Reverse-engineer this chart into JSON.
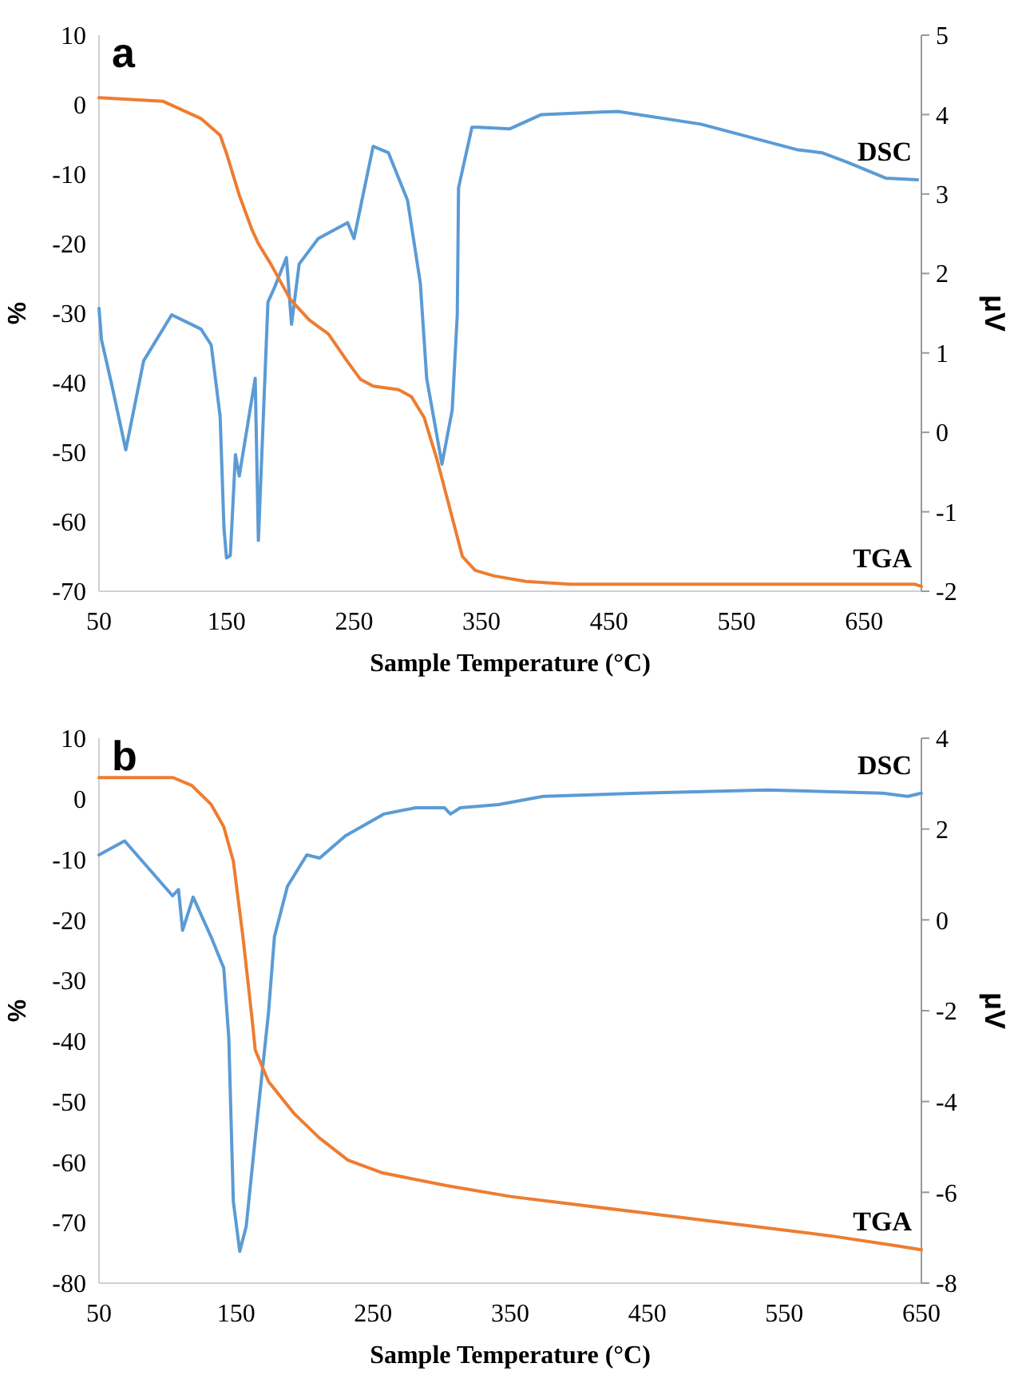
{
  "chart_data": [
    {
      "type": "line",
      "annotations": [
        "a"
      ],
      "xlabel": "Sample Temperature (°C)",
      "ylabel": "%",
      "y2label": "μV",
      "xlim": [
        50,
        695
      ],
      "xticks": [
        50,
        150,
        250,
        350,
        450,
        550,
        650
      ],
      "ylim": [
        -70,
        10
      ],
      "yticks": [
        -70,
        -60,
        -50,
        -40,
        -30,
        -20,
        -10,
        0,
        10
      ],
      "y2lim": [
        -2,
        5
      ],
      "y2ticks": [
        -2,
        -1,
        0,
        1,
        2,
        3,
        4,
        5
      ],
      "grid": false,
      "marker": "none",
      "line_style": "solid",
      "series": [
        {
          "name": "DSC",
          "color": "#5b9bd5",
          "axis": "y2",
          "x": [
            50,
            52,
            60,
            71,
            85,
            107,
            130,
            138,
            145,
            148,
            150,
            153,
            157,
            160,
            172.5,
            175,
            182.5,
            187,
            197,
            201,
            207,
            222,
            245,
            250,
            265,
            277,
            292,
            302,
            307,
            319,
            327,
            331,
            332,
            342.5,
            347,
            372,
            397,
            457,
            522,
            597,
            617,
            637,
            667,
            692
          ],
          "values": [
            1.56,
            1.16,
            0.6,
            -0.22,
            0.9,
            1.48,
            1.3,
            1.1,
            0.2,
            -1.2,
            -1.58,
            -1.55,
            -0.28,
            -0.55,
            0.68,
            -1.36,
            1.64,
            1.8,
            2.2,
            1.36,
            2.12,
            2.44,
            2.64,
            2.44,
            3.6,
            3.52,
            2.92,
            1.88,
            0.68,
            -0.4,
            0.28,
            1.48,
            3.08,
            3.84,
            3.84,
            3.82,
            4.0,
            4.04,
            3.88,
            3.56,
            3.52,
            3.4,
            3.2,
            3.18
          ]
        },
        {
          "name": "TGA",
          "color": "#ed7d31",
          "x": [
            50,
            100,
            130,
            145,
            150,
            160,
            170,
            175,
            185,
            200,
            215,
            230,
            245,
            255,
            265,
            285,
            295,
            305,
            315,
            325,
            335,
            345,
            360,
            385,
            420,
            690,
            695
          ],
          "values": [
            1,
            0.5,
            -2,
            -4.4,
            -7,
            -13,
            -18,
            -20,
            -23,
            -28,
            -31,
            -33,
            -37,
            -39.5,
            -40.5,
            -41,
            -42,
            -45,
            -51,
            -58,
            -65,
            -67,
            -67.8,
            -68.6,
            -69,
            -69,
            -69.3
          ]
        }
      ]
    },
    {
      "type": "line",
      "annotations": [
        "b"
      ],
      "xlabel": "Sample Temperature (°C)",
      "ylabel": "%",
      "y2label": "μV",
      "xlim": [
        50,
        650
      ],
      "xticks": [
        50,
        150,
        250,
        350,
        450,
        550,
        650
      ],
      "ylim": [
        -80,
        10
      ],
      "yticks": [
        -80,
        -70,
        -60,
        -50,
        -40,
        -30,
        -20,
        -10,
        0,
        10
      ],
      "y2lim": [
        -8,
        4
      ],
      "y2ticks": [
        -8,
        -6,
        -4,
        -2,
        0,
        2,
        4
      ],
      "grid": false,
      "marker": "none",
      "line_style": "solid",
      "series": [
        {
          "name": "DSC",
          "color": "#5b9bd5",
          "axis": "y2",
          "x": [
            50,
            68.7,
            103.7,
            108,
            111,
            118.7,
            131.7,
            141,
            144.7,
            148,
            152.7,
            157.4,
            164,
            173.7,
            178,
            187.5,
            201.6,
            211,
            229.7,
            257.7,
            281,
            302,
            306.5,
            313.6,
            341.6,
            374,
            444,
            537.7,
            621.7,
            640,
            650
          ],
          "values": [
            1.43,
            1.74,
            0.53,
            0.67,
            -0.23,
            0.5,
            -0.37,
            -1.06,
            -2.6,
            -6.2,
            -7.3,
            -6.75,
            -4.8,
            -2.03,
            -0.37,
            0.74,
            1.43,
            1.36,
            1.85,
            2.33,
            2.47,
            2.47,
            2.33,
            2.47,
            2.54,
            2.72,
            2.79,
            2.86,
            2.79,
            2.72,
            2.79
          ]
        },
        {
          "name": "TGA",
          "color": "#ed7d31",
          "x": [
            50,
            104,
            117.7,
            131.7,
            141,
            148,
            155,
            162,
            164,
            173.7,
            192,
            210.7,
            231.7,
            257,
            303.8,
            350.5,
            444,
            537.7,
            584,
            631,
            650
          ],
          "values": [
            3.5,
            3.5,
            2.2,
            -0.9,
            -4.6,
            -10.3,
            -22.8,
            -37,
            -41.5,
            -46.7,
            -51.9,
            -56,
            -59.7,
            -61.8,
            -63.9,
            -65.7,
            -68.3,
            -70.9,
            -72.2,
            -73.8,
            -74.5
          ]
        }
      ]
    }
  ]
}
